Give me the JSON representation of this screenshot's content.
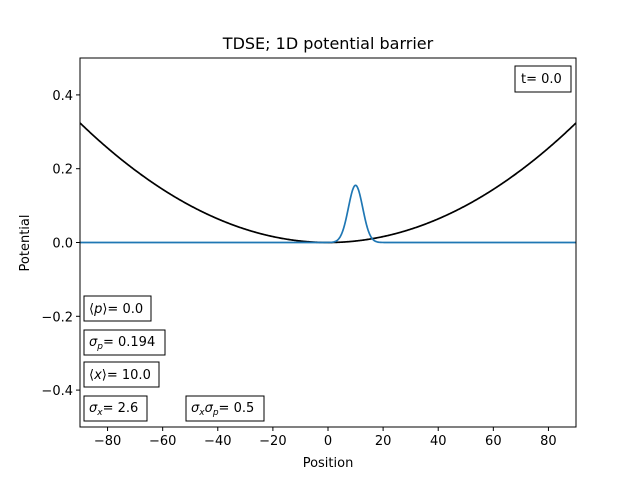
{
  "chart_data": {
    "type": "line",
    "title": "TDSE; 1D potential barrier",
    "xlabel": "Position",
    "ylabel": "Potential",
    "xlim": [
      -90,
      90
    ],
    "ylim": [
      -0.5,
      0.5
    ],
    "xticks": [
      -80,
      -60,
      -40,
      -20,
      0,
      20,
      40,
      60,
      80
    ],
    "xtick_labels": [
      "−80",
      "−60",
      "−40",
      "−20",
      "0",
      "20",
      "40",
      "60",
      "80"
    ],
    "yticks": [
      0.4,
      0.2,
      0.0,
      -0.2,
      -0.4
    ],
    "ytick_labels": [
      "0.4",
      "0.2",
      "0.0",
      "−0.2",
      "−0.4"
    ],
    "grid": false,
    "series": [
      {
        "kind": "harmonic",
        "color": "#000000",
        "coefficient": 4e-05,
        "center": 0
      },
      {
        "kind": "gaussian",
        "color": "#1f77b4",
        "amplitude": 0.155,
        "center": 10.0,
        "sigma": 2.6
      }
    ],
    "annotations": {
      "time": {
        "prefix": "t= ",
        "value": "0.0"
      },
      "mean_p": {
        "value": "0.0"
      },
      "sigma_p": {
        "value": "0.194"
      },
      "mean_x": {
        "value": "10.0"
      },
      "sigma_x": {
        "value": "2.6"
      },
      "sigma_xp": {
        "value": "0.5"
      }
    }
  }
}
